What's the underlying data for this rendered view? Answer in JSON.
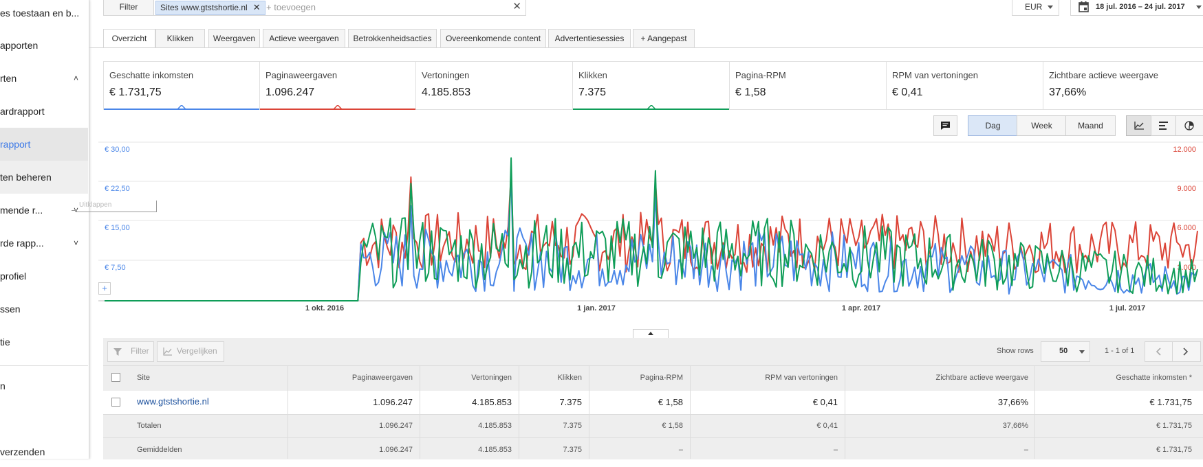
{
  "sidebar": {
    "items": [
      {
        "label": "es toestaan en b..."
      },
      {
        "label": "apporten"
      },
      {
        "label": "rten"
      },
      {
        "label": "ardrapport"
      },
      {
        "label": "rapport"
      },
      {
        "label": "ten beheren"
      },
      {
        "label": "mende r..."
      },
      {
        "label": "rde rapp..."
      },
      {
        "label": "profiel"
      },
      {
        "label": "ssen"
      },
      {
        "label": "tie"
      },
      {
        "label": "n"
      },
      {
        "label": "verzenden"
      }
    ]
  },
  "filter": {
    "button_label": "Filter",
    "chip_label": "Sites www.gtstshortie.nl",
    "chip_close": "✕",
    "add_placeholder": "+ toevoegen",
    "clear": "✕"
  },
  "currency": {
    "value": "EUR"
  },
  "date_range": {
    "value": "18 jul. 2016 – 24 jul. 2017"
  },
  "tabs": [
    {
      "label": "Overzicht"
    },
    {
      "label": "Klikken"
    },
    {
      "label": "Weergaven"
    },
    {
      "label": "Actieve weergaven"
    },
    {
      "label": "Betrokkenheidsacties"
    },
    {
      "label": "Overeenkomende content"
    },
    {
      "label": "Advertentiesessies"
    },
    {
      "label": "+ Aangepast"
    }
  ],
  "metrics": [
    {
      "label": "Geschatte inkomsten",
      "value": "€ 1.731,75",
      "color": "#4a86e8"
    },
    {
      "label": "Paginaweergaven",
      "value": "1.096.247",
      "color": "#db4437"
    },
    {
      "label": "Vertoningen",
      "value": "4.185.853",
      "color": ""
    },
    {
      "label": "Klikken",
      "value": "7.375",
      "color": "#0f9d58"
    },
    {
      "label": "Pagina-RPM",
      "value": "€ 1,58",
      "color": ""
    },
    {
      "label": "RPM van vertoningen",
      "value": "€ 0,41",
      "color": ""
    },
    {
      "label": "Zichtbare actieve weergave",
      "value": "37,66%",
      "color": ""
    }
  ],
  "chart_controls": {
    "granularity": [
      "Dag",
      "Week",
      "Maand"
    ],
    "selected": "Dag",
    "icons": [
      "comment-icon",
      "line-chart-icon",
      "bar-chart-icon",
      "pie-chart-icon"
    ]
  },
  "chart_data": {
    "type": "line",
    "x_ticks": [
      "1 okt. 2016",
      "1 jan. 2017",
      "1 apr. 2017",
      "1 jul. 2017"
    ],
    "y_left_ticks": [
      "€ 30,00",
      "€ 22,50",
      "€ 15,00",
      "€ 7,50"
    ],
    "y_right_ticks": [
      "12.000",
      "9.000",
      "6.000",
      "3.000"
    ],
    "y_left_range": [
      0,
      30
    ],
    "y_right_range": [
      0,
      12000
    ],
    "x_range": [
      "2016-07-18",
      "2017-07-24"
    ],
    "series": [
      {
        "color": "#db4437"
      },
      {
        "color": "#4a86e8"
      },
      {
        "color": "#0f9d58"
      }
    ],
    "tooltip_label": "Uitklappen"
  },
  "table_toolbar": {
    "filter_label": "Filter",
    "compare_label": "Vergelijken",
    "show_rows_label": "Show rows",
    "show_rows_value": "50",
    "pagination": "1 - 1 of 1"
  },
  "table": {
    "columns": [
      "Site",
      "Paginaweergaven",
      "Vertoningen",
      "Klikken",
      "Pagina-RPM",
      "RPM van vertoningen",
      "Zichtbare actieve weergave",
      "Geschatte inkomsten *"
    ],
    "rows": [
      [
        "www.gtstshortie.nl",
        "1.096.247",
        "4.185.853",
        "7.375",
        "€ 1,58",
        "€ 0,41",
        "37,66%",
        "€ 1.731,75"
      ]
    ],
    "totals": [
      "Totalen",
      "1.096.247",
      "4.185.853",
      "7.375",
      "€ 1,58",
      "€ 0,41",
      "37,66%",
      "€ 1.731,75"
    ],
    "averages": [
      "Gemiddelden",
      "1.096.247",
      "4.185.853",
      "7.375",
      "–",
      "–",
      "–",
      "€ 1.731,75"
    ]
  }
}
